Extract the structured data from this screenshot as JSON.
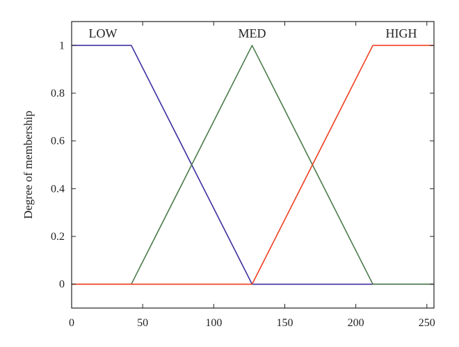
{
  "chart_data": {
    "type": "line",
    "title": "",
    "xlabel": "",
    "ylabel": "Degree of membership",
    "xlim": [
      0,
      255
    ],
    "ylim": [
      -0.1,
      1.1
    ],
    "xticks": [
      0,
      50,
      100,
      150,
      200,
      250
    ],
    "yticks": [
      0,
      0.2,
      0.4,
      0.6,
      0.8,
      1
    ],
    "grid": false,
    "legend": "none",
    "series": [
      {
        "name": "LOW",
        "color": "#3a2e9e",
        "x": [
          0,
          42,
          127,
          255
        ],
        "y": [
          1,
          1,
          0,
          0
        ],
        "label_at": [
          12,
          1.05
        ]
      },
      {
        "name": "MED",
        "color": "#4a7a4a",
        "x": [
          0,
          42,
          127,
          212,
          255
        ],
        "y": [
          0,
          0,
          1,
          0,
          0
        ],
        "label_at": [
          127,
          1.05
        ]
      },
      {
        "name": "HIGH",
        "color": "#f03c1e",
        "x": [
          0,
          127,
          212,
          255
        ],
        "y": [
          0,
          0,
          1,
          1
        ],
        "label_at": [
          232,
          1.05
        ]
      }
    ]
  }
}
